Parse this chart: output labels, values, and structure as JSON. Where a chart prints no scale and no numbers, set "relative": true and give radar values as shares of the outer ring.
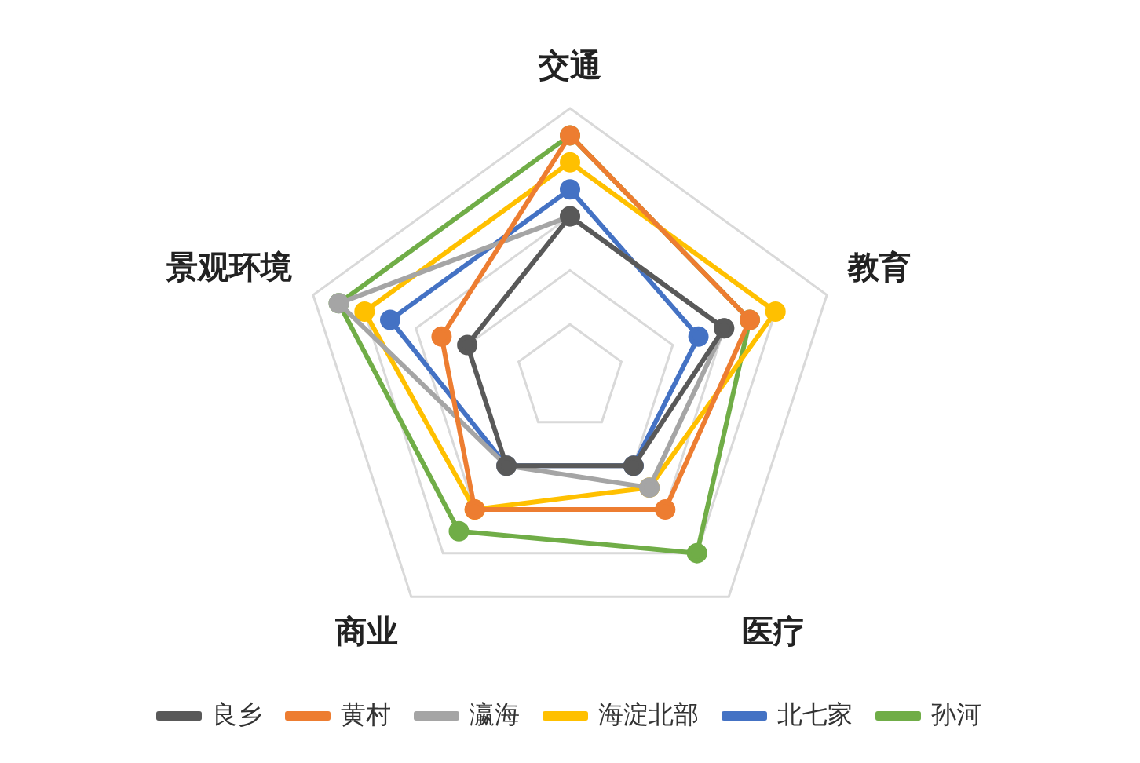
{
  "chart_data": {
    "type": "radar",
    "relative": true,
    "categories": [
      "交通",
      "教育",
      "医疗",
      "商业",
      "景观环境"
    ],
    "legend": "bottom",
    "marker": "circle",
    "series": [
      {
        "name": "良乡",
        "color": "#595959",
        "values": [
          0.6,
          0.6,
          0.4,
          0.4,
          0.4
        ]
      },
      {
        "name": "黄村",
        "color": "#ed7d31",
        "values": [
          0.9,
          0.7,
          0.6,
          0.6,
          0.5
        ]
      },
      {
        "name": "瀛海",
        "color": "#a5a5a5",
        "values": [
          0.6,
          0.6,
          0.5,
          0.4,
          0.9
        ]
      },
      {
        "name": "海淀北部",
        "color": "#ffc000",
        "values": [
          0.8,
          0.8,
          0.5,
          0.6,
          0.8
        ]
      },
      {
        "name": "北七家",
        "color": "#4472c4",
        "values": [
          0.7,
          0.5,
          0.4,
          0.4,
          0.7
        ]
      },
      {
        "name": "孙河",
        "color": "#70ad47",
        "values": [
          0.9,
          0.7,
          0.8,
          0.7,
          0.9
        ]
      }
    ]
  }
}
